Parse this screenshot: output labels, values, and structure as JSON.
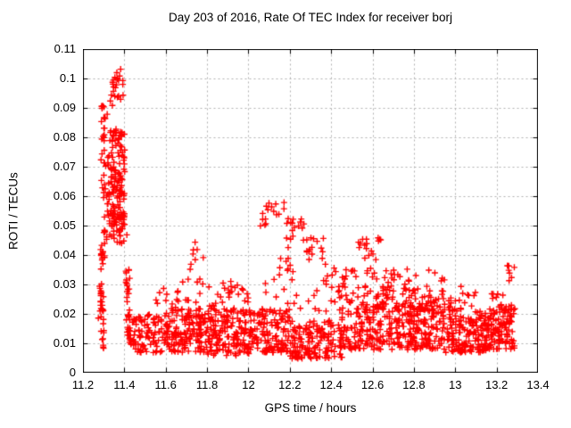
{
  "chart_data": {
    "type": "scatter",
    "title": "Day 203 of 2016, Rate Of TEC Index for receiver borj",
    "xlabel": "GPS time / hours",
    "ylabel": "ROTI / TECUs",
    "xlim": [
      11.2,
      13.4
    ],
    "ylim": [
      0,
      0.11
    ],
    "xticks": [
      11.2,
      11.4,
      11.6,
      11.8,
      12,
      12.2,
      12.4,
      12.6,
      12.8,
      13,
      13.2,
      13.4
    ],
    "xtick_labels": [
      "11.2",
      "11.4",
      "11.6",
      "11.8",
      "12",
      "12.2",
      "12.4",
      "12.6",
      "12.8",
      "13",
      "13.2",
      "13.4"
    ],
    "yticks": [
      0,
      0.01,
      0.02,
      0.03,
      0.04,
      0.05,
      0.06,
      0.07,
      0.08,
      0.09,
      0.1,
      0.11
    ],
    "ytick_labels": [
      "0",
      "0.01",
      "0.02",
      "0.03",
      "0.04",
      "0.05",
      "0.06",
      "0.07",
      "0.08",
      "0.09",
      "0.1",
      "0.11"
    ],
    "grid": true,
    "legend": "none",
    "marker": "plus",
    "colors": {
      "marker": "#ff0000",
      "grid": "#b0b0b0",
      "border": "#000000",
      "background": "#ffffff",
      "text": "#000000"
    },
    "data_x_range": [
      11.265,
      13.29
    ],
    "feature_points": [
      [
        11.38,
        0.1033
      ],
      [
        11.375,
        0.101
      ],
      [
        11.37,
        0.0995
      ],
      [
        11.365,
        0.1
      ],
      [
        11.36,
        0.098
      ],
      [
        11.355,
        0.097
      ],
      [
        11.345,
        0.0958
      ],
      [
        11.335,
        0.0945
      ],
      [
        11.33,
        0.0925
      ],
      [
        11.34,
        0.091
      ],
      [
        11.315,
        0.088
      ],
      [
        11.305,
        0.0865
      ],
      [
        11.29,
        0.09
      ],
      [
        11.287,
        0.0855
      ],
      [
        11.295,
        0.0805
      ],
      [
        11.3,
        0.079
      ],
      [
        11.29,
        0.0745
      ],
      [
        11.285,
        0.0725
      ],
      [
        11.3,
        0.0715
      ],
      [
        11.287,
        0.0655
      ],
      [
        11.292,
        0.063
      ],
      [
        11.29,
        0.0385
      ],
      [
        11.286,
        0.04
      ],
      [
        11.41,
        0.047
      ],
      [
        11.42,
        0.035
      ],
      [
        11.74,
        0.0445
      ],
      [
        11.75,
        0.042
      ],
      [
        11.73,
        0.0405
      ],
      [
        11.72,
        0.037
      ],
      [
        11.68,
        0.031
      ],
      [
        12.08,
        0.0305
      ],
      [
        12.11,
        0.0565
      ],
      [
        12.12,
        0.055
      ],
      [
        12.13,
        0.0575
      ],
      [
        12.145,
        0.054
      ],
      [
        12.17,
        0.058
      ],
      [
        12.19,
        0.0525
      ],
      [
        12.21,
        0.051
      ],
      [
        12.22,
        0.0495
      ],
      [
        12.24,
        0.05
      ],
      [
        12.19,
        0.0427
      ],
      [
        12.18,
        0.038
      ],
      [
        12.3,
        0.046
      ],
      [
        12.33,
        0.0448
      ],
      [
        12.28,
        0.0415
      ],
      [
        12.35,
        0.0425
      ],
      [
        12.19,
        0.039
      ],
      [
        12.37,
        0.037
      ],
      [
        12.36,
        0.0458
      ],
      [
        12.42,
        0.0345
      ],
      [
        12.47,
        0.033
      ],
      [
        12.53,
        0.0445
      ],
      [
        12.55,
        0.0455
      ],
      [
        12.56,
        0.0435
      ],
      [
        12.57,
        0.044
      ],
      [
        12.6,
        0.0405
      ],
      [
        12.625,
        0.046
      ],
      [
        12.58,
        0.04
      ],
      [
        12.7,
        0.035
      ],
      [
        12.72,
        0.0335
      ],
      [
        12.87,
        0.035
      ],
      [
        13.25,
        0.0365
      ],
      [
        13.26,
        0.034
      ],
      [
        13.27,
        0.0325
      ]
    ],
    "density_clusters": [
      {
        "x0": 11.265,
        "x1": 11.285,
        "y0": 0.018,
        "y1": 0.03,
        "n": 6
      },
      {
        "x0": 11.283,
        "x1": 11.302,
        "y0": 0.03,
        "y1": 0.092,
        "n": 26
      },
      {
        "x0": 11.283,
        "x1": 11.3,
        "y0": 0.008,
        "y1": 0.028,
        "n": 26
      },
      {
        "x0": 11.315,
        "x1": 11.325,
        "y0": 0.055,
        "y1": 0.075,
        "n": 8
      },
      {
        "x0": 11.33,
        "x1": 11.4,
        "y0": 0.05,
        "y1": 0.083,
        "n": 115
      },
      {
        "x0": 11.335,
        "x1": 11.393,
        "y0": 0.092,
        "y1": 0.1035,
        "n": 14
      },
      {
        "x0": 11.3,
        "x1": 11.332,
        "y0": 0.06,
        "y1": 0.09,
        "n": 12
      },
      {
        "x0": 11.3,
        "x1": 11.4,
        "y0": 0.044,
        "y1": 0.054,
        "n": 45
      },
      {
        "x0": 11.285,
        "x1": 11.296,
        "y0": 0.036,
        "y1": 0.042,
        "n": 5
      },
      {
        "x0": 11.405,
        "x1": 11.425,
        "y0": 0.01,
        "y1": 0.036,
        "n": 28
      },
      {
        "x0": 11.42,
        "x1": 11.6,
        "y0": 0.007,
        "y1": 0.02,
        "n": 100,
        "ybias": 1.3
      },
      {
        "x0": 11.6,
        "x1": 11.8,
        "y0": 0.007,
        "y1": 0.022,
        "n": 150,
        "ybias": 1.3
      },
      {
        "x0": 11.8,
        "x1": 12.0,
        "y0": 0.006,
        "y1": 0.022,
        "n": 150,
        "ybias": 1.3
      },
      {
        "x0": 12.0,
        "x1": 12.2,
        "y0": 0.007,
        "y1": 0.022,
        "n": 140,
        "ybias": 1.3
      },
      {
        "x0": 12.2,
        "x1": 12.45,
        "y0": 0.005,
        "y1": 0.018,
        "n": 160,
        "ybias": 1.3
      },
      {
        "x0": 12.45,
        "x1": 12.7,
        "y0": 0.008,
        "y1": 0.024,
        "n": 150,
        "ybias": 1.3
      },
      {
        "x0": 12.7,
        "x1": 12.95,
        "y0": 0.008,
        "y1": 0.024,
        "n": 150,
        "ybias": 1.3
      },
      {
        "x0": 12.95,
        "x1": 13.15,
        "y0": 0.007,
        "y1": 0.02,
        "n": 130,
        "ybias": 1.3
      },
      {
        "x0": 13.15,
        "x1": 13.29,
        "y0": 0.008,
        "y1": 0.022,
        "n": 90,
        "ybias": 1.3
      },
      {
        "x0": 11.55,
        "x1": 13.1,
        "y0": 0.021,
        "y1": 0.03,
        "n": 120,
        "ybias": 1.5
      },
      {
        "x0": 11.7,
        "x1": 11.78,
        "y0": 0.03,
        "y1": 0.044,
        "n": 9
      },
      {
        "x0": 11.86,
        "x1": 11.96,
        "y0": 0.023,
        "y1": 0.032,
        "n": 9
      },
      {
        "x0": 12.05,
        "x1": 12.18,
        "y0": 0.05,
        "y1": 0.058,
        "n": 11
      },
      {
        "x0": 12.17,
        "x1": 12.28,
        "y0": 0.044,
        "y1": 0.053,
        "n": 13
      },
      {
        "x0": 12.26,
        "x1": 12.36,
        "y0": 0.038,
        "y1": 0.047,
        "n": 9
      },
      {
        "x0": 12.1,
        "x1": 12.22,
        "y0": 0.03,
        "y1": 0.04,
        "n": 9
      },
      {
        "x0": 12.36,
        "x1": 12.5,
        "y0": 0.029,
        "y1": 0.037,
        "n": 9
      },
      {
        "x0": 12.5,
        "x1": 12.66,
        "y0": 0.035,
        "y1": 0.046,
        "n": 11
      },
      {
        "x0": 12.42,
        "x1": 12.7,
        "y0": 0.024,
        "y1": 0.035,
        "n": 40
      },
      {
        "x0": 12.66,
        "x1": 12.8,
        "y0": 0.027,
        "y1": 0.036,
        "n": 12
      },
      {
        "x0": 12.8,
        "x1": 12.95,
        "y0": 0.024,
        "y1": 0.035,
        "n": 13
      },
      {
        "x0": 12.7,
        "x1": 13.0,
        "y0": 0.017,
        "y1": 0.026,
        "n": 55,
        "ybias": 1.2
      },
      {
        "x0": 13.0,
        "x1": 13.28,
        "y0": 0.013,
        "y1": 0.024,
        "n": 45,
        "ybias": 1.2
      },
      {
        "x0": 13.16,
        "x1": 13.26,
        "y0": 0.02,
        "y1": 0.027,
        "n": 15
      },
      {
        "x0": 13.24,
        "x1": 13.285,
        "y0": 0.031,
        "y1": 0.037,
        "n": 5
      }
    ],
    "seed": 203
  }
}
